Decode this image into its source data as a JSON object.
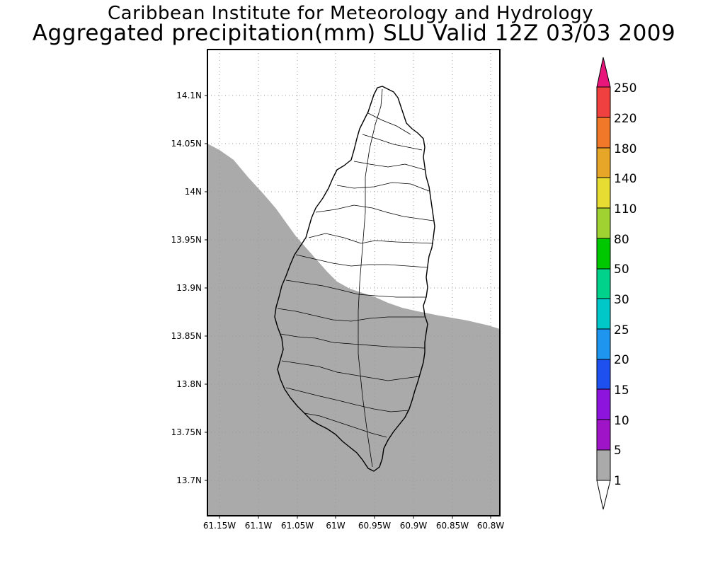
{
  "header": {
    "institute": "Caribbean Institute for Meteorology and Hydrology",
    "title": "Aggregated precipitation(mm) SLU Valid 12Z 03/03 2009"
  },
  "map": {
    "lat_labels": [
      "14.1N",
      "14.05N",
      "14N",
      "13.95N",
      "13.9N",
      "13.85N",
      "13.8N",
      "13.75N",
      "13.7N"
    ],
    "lon_labels": [
      "61.15W",
      "61.1W",
      "61.05W",
      "61W",
      "60.95W",
      "60.9W",
      "60.85W",
      "60.8W"
    ],
    "precip_region_color": "#aaaaaa",
    "background_color": "#ffffff"
  },
  "colorbar": {
    "labels": [
      "250",
      "220",
      "180",
      "140",
      "110",
      "80",
      "50",
      "30",
      "25",
      "20",
      "15",
      "10",
      "5",
      "1"
    ],
    "colors": [
      "#e8157a",
      "#f04040",
      "#f07828",
      "#e8a628",
      "#e6dc32",
      "#a0d232",
      "#00c800",
      "#00d28c",
      "#00c8c8",
      "#1e96f0",
      "#1e50f0",
      "#8c14dc",
      "#a014c8",
      "#aaaaaa",
      "#ffffff"
    ]
  }
}
